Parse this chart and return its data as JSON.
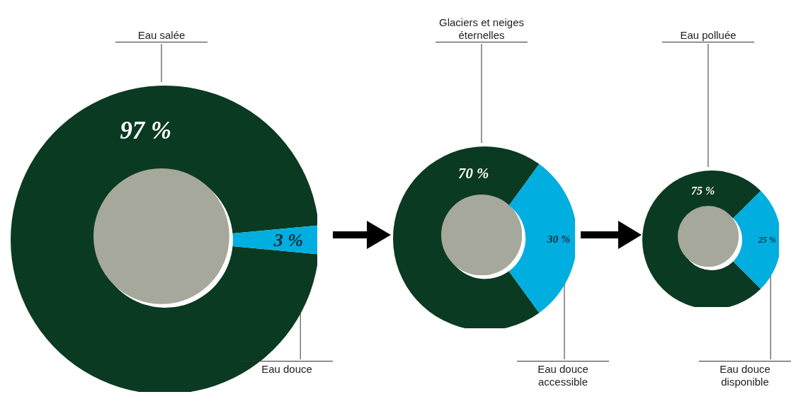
{
  "chart_data": [
    {
      "type": "donut",
      "categories": [
        "Eau salée",
        "Eau douce"
      ],
      "values": [
        97,
        3
      ],
      "colors": [
        "#0b3a22",
        "#00aee0"
      ],
      "value_labels": [
        "97 %",
        "3 %"
      ]
    },
    {
      "type": "donut",
      "categories": [
        "Glaciers et neiges éternelles",
        "Eau douce accessible"
      ],
      "values": [
        70,
        30
      ],
      "colors": [
        "#0b3a22",
        "#00aee0"
      ],
      "value_labels": [
        "70 %",
        "30 %"
      ]
    },
    {
      "type": "donut",
      "categories": [
        "Eau polluée",
        "Eau douce disponible"
      ],
      "values": [
        75,
        25
      ],
      "colors": [
        "#0b3a22",
        "#00aee0"
      ],
      "value_labels": [
        "75 %",
        "25 %"
      ]
    }
  ]
}
